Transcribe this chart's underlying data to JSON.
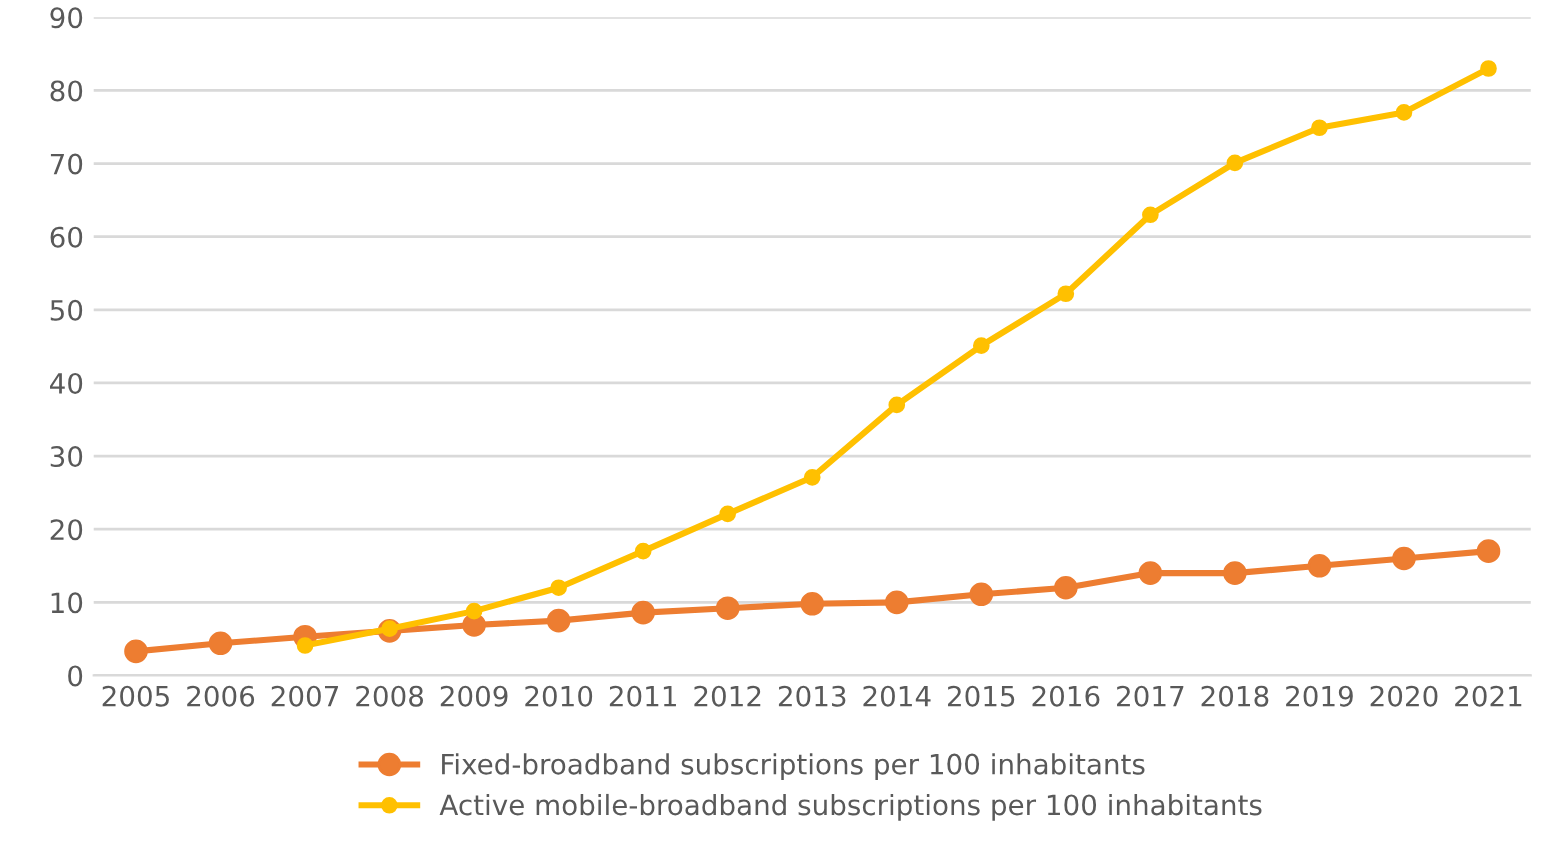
{
  "chart_data": {
    "type": "line",
    "categories": [
      "2005",
      "2006",
      "2007",
      "2008",
      "2009",
      "2010",
      "2011",
      "2012",
      "2013",
      "2014",
      "2015",
      "2016",
      "2017",
      "2018",
      "2019",
      "2020",
      "2021"
    ],
    "series": [
      {
        "name": "Fixed-broadband subscriptions per 100 inhabitants",
        "color": "#ed7d31",
        "values": [
          3.3,
          4.4,
          5.3,
          6.1,
          6.9,
          7.5,
          8.6,
          9.2,
          9.8,
          10.0,
          11.1,
          12.0,
          14.0,
          14.0,
          15.0,
          16.0,
          17.0
        ]
      },
      {
        "name": "Active mobile-broadband subscriptions per 100 inhabitants",
        "color": "#ffc000",
        "values": [
          null,
          null,
          4.1,
          6.4,
          8.8,
          12.0,
          17.0,
          22.1,
          27.1,
          37.0,
          45.1,
          52.2,
          63.0,
          70.1,
          74.9,
          77.0,
          83.0
        ]
      }
    ],
    "ylim": [
      0,
      90
    ],
    "yticks": [
      0,
      10,
      20,
      30,
      40,
      50,
      60,
      70,
      80,
      90
    ],
    "grid": "y",
    "legend": "bottom",
    "marker": "circle",
    "line_style": "solid"
  }
}
